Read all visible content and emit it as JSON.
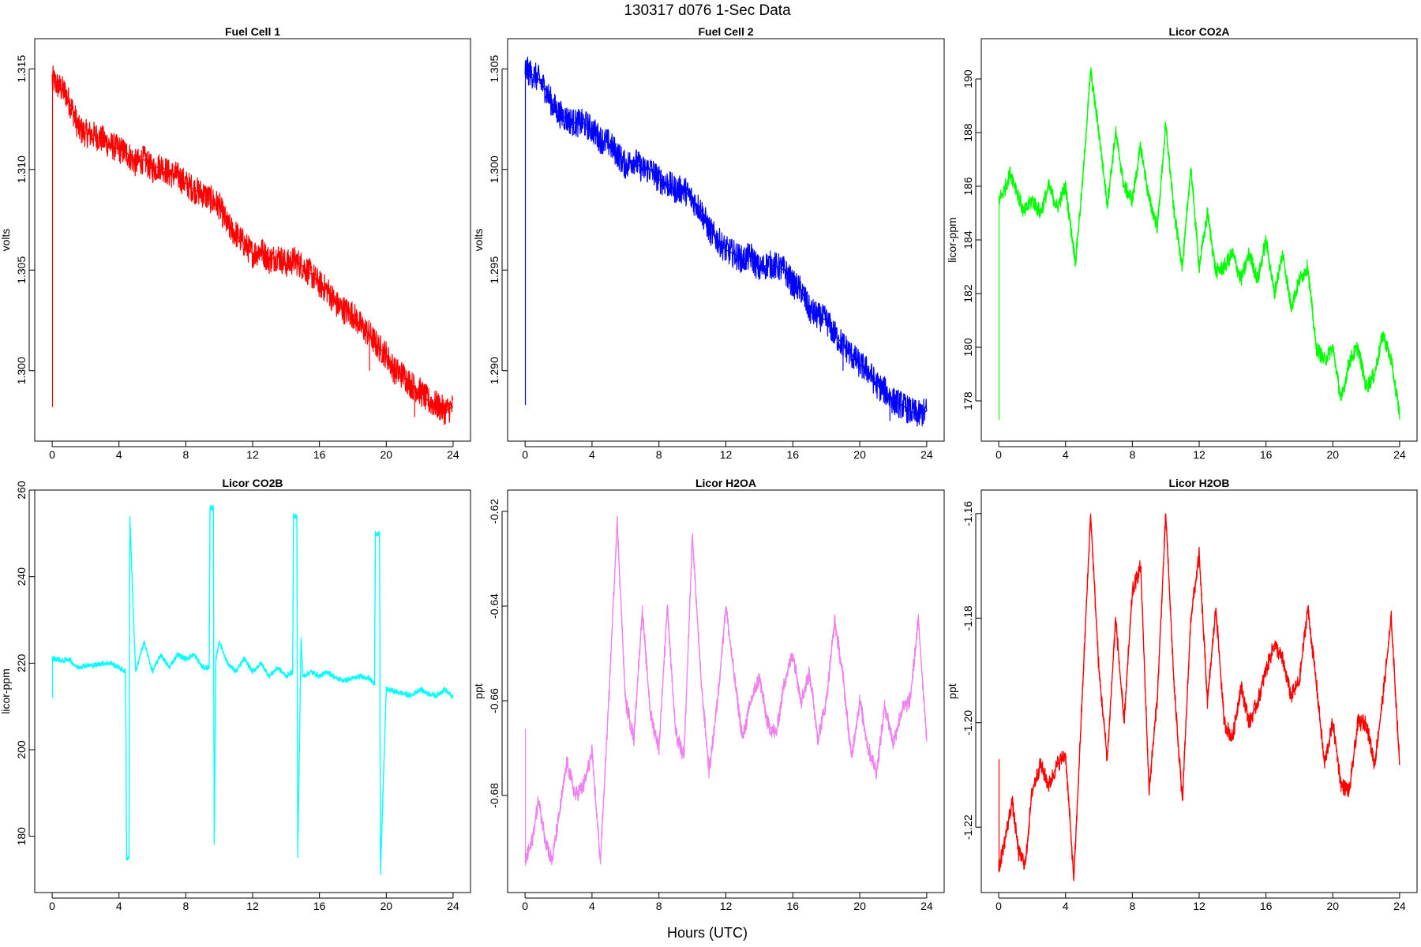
{
  "page": {
    "title": "130317   d076   1-Sec Data",
    "xlabel": "Hours (UTC)"
  },
  "chart_data": [
    {
      "type": "line",
      "title": "Fuel Cell 1",
      "xlabel": "",
      "ylabel": "volts",
      "color": "#ff0000",
      "xlim": [
        0,
        24
      ],
      "ylim": [
        1.2965,
        1.3165
      ],
      "xticks": [
        0,
        4,
        8,
        12,
        16,
        20,
        24
      ],
      "yticks": [
        1.3,
        1.305,
        1.31,
        1.315
      ],
      "ytick_labels": [
        "1.300",
        "1.305",
        "1.310",
        "1.315"
      ],
      "noise": 0.0007,
      "x": [
        0,
        0.3,
        0.8,
        1.2,
        1.6,
        2.0,
        2.5,
        3.0,
        3.5,
        4.0,
        4.5,
        5.0,
        5.5,
        6.0,
        6.5,
        7.0,
        7.5,
        8.0,
        8.5,
        9.0,
        9.5,
        10.0,
        10.5,
        11.0,
        11.5,
        12.0,
        12.5,
        13.0,
        13.5,
        14.0,
        14.5,
        15.0,
        15.5,
        16.0,
        16.5,
        17.0,
        17.5,
        18.0,
        18.5,
        19.0,
        19.5,
        20.0,
        20.5,
        21.0,
        21.5,
        22.0,
        22.5,
        23.0,
        23.5,
        24.0
      ],
      "y": [
        1.3145,
        1.3142,
        1.3138,
        1.313,
        1.312,
        1.3118,
        1.3117,
        1.3115,
        1.3112,
        1.311,
        1.3108,
        1.3103,
        1.3105,
        1.31,
        1.3102,
        1.3098,
        1.3097,
        1.3093,
        1.309,
        1.3088,
        1.3085,
        1.3082,
        1.3072,
        1.3068,
        1.3063,
        1.3058,
        1.306,
        1.3055,
        1.3057,
        1.3053,
        1.3055,
        1.3052,
        1.3048,
        1.3043,
        1.304,
        1.3033,
        1.303,
        1.3028,
        1.3022,
        1.3018,
        1.3012,
        1.3008,
        1.3,
        1.2998,
        1.2993,
        1.299,
        1.2985,
        1.2983,
        1.298,
        1.2982
      ],
      "spikes": [
        {
          "x": 0.02,
          "y": 1.2982
        },
        {
          "x": 19.0,
          "y": 1.3
        },
        {
          "x": 21.7,
          "y": 1.2977
        }
      ]
    },
    {
      "type": "line",
      "title": "Fuel Cell 2",
      "xlabel": "",
      "ylabel": "volts",
      "color": "#0000ff",
      "xlim": [
        0,
        24
      ],
      "ylim": [
        1.2865,
        1.3065
      ],
      "xticks": [
        0,
        4,
        8,
        12,
        16,
        20,
        24
      ],
      "yticks": [
        1.29,
        1.295,
        1.3,
        1.305
      ],
      "ytick_labels": [
        "1.290",
        "1.295",
        "1.300",
        "1.305"
      ],
      "noise": 0.0007,
      "x": [
        0,
        0.3,
        0.8,
        1.2,
        1.6,
        2.0,
        2.5,
        3.0,
        3.5,
        4.0,
        4.5,
        5.0,
        5.5,
        6.0,
        6.5,
        7.0,
        7.5,
        8.0,
        8.5,
        9.0,
        9.5,
        10.0,
        10.5,
        11.0,
        11.5,
        12.0,
        12.5,
        13.0,
        13.5,
        14.0,
        14.5,
        15.0,
        15.5,
        16.0,
        16.5,
        17.0,
        17.5,
        18.0,
        18.5,
        19.0,
        19.5,
        20.0,
        20.5,
        21.0,
        21.5,
        22.0,
        22.5,
        23.0,
        23.5,
        24.0
      ],
      "y": [
        1.305,
        1.3048,
        1.3045,
        1.304,
        1.3033,
        1.3028,
        1.3025,
        1.3023,
        1.3023,
        1.302,
        1.3015,
        1.3013,
        1.3008,
        1.3002,
        1.3005,
        1.3,
        1.3,
        1.2995,
        1.2993,
        1.299,
        1.299,
        1.2985,
        1.298,
        1.297,
        1.2965,
        1.296,
        1.2958,
        1.2955,
        1.2957,
        1.295,
        1.2953,
        1.2952,
        1.295,
        1.2943,
        1.294,
        1.293,
        1.2927,
        1.2925,
        1.2918,
        1.2913,
        1.2908,
        1.2903,
        1.29,
        1.2893,
        1.289,
        1.2885,
        1.2883,
        1.288,
        1.2878,
        1.288
      ],
      "spikes": [
        {
          "x": 0.02,
          "y": 1.2883
        },
        {
          "x": 19.0,
          "y": 1.29
        },
        {
          "x": 21.8,
          "y": 1.2875
        }
      ]
    },
    {
      "type": "line",
      "title": "Licor CO2A",
      "xlabel": "",
      "ylabel": "licor-ppm",
      "color": "#00ff00",
      "xlim": [
        0,
        24
      ],
      "ylim": [
        176.5,
        191.5
      ],
      "xticks": [
        0,
        4,
        8,
        12,
        16,
        20,
        24
      ],
      "yticks": [
        178,
        180,
        182,
        184,
        186,
        188,
        190
      ],
      "ytick_labels": [
        "178",
        "180",
        "182",
        "184",
        "186",
        "188",
        "190"
      ],
      "noise": 0.3,
      "x": [
        0,
        0.3,
        0.7,
        1.0,
        1.5,
        2.0,
        2.5,
        3.0,
        3.5,
        4.0,
        4.3,
        4.6,
        5.0,
        5.5,
        6.0,
        6.5,
        7.0,
        7.5,
        8.0,
        8.5,
        9.0,
        9.5,
        10.0,
        10.5,
        11.0,
        11.5,
        12.0,
        12.5,
        13.0,
        13.5,
        14.0,
        14.5,
        15.0,
        15.5,
        16.0,
        16.5,
        17.0,
        17.5,
        18.0,
        18.5,
        19.0,
        19.5,
        20.0,
        20.5,
        21.0,
        21.5,
        22.0,
        22.5,
        23.0,
        23.5,
        24.0
      ],
      "y": [
        185.5,
        185.8,
        186.5,
        186.0,
        185.0,
        185.5,
        185.0,
        186.0,
        185.2,
        186.0,
        184.5,
        183.2,
        186.0,
        190.3,
        188.0,
        185.3,
        188.0,
        186.0,
        185.5,
        187.5,
        185.5,
        184.5,
        188.3,
        185.0,
        183.0,
        186.7,
        183.0,
        185.0,
        182.8,
        183.0,
        183.5,
        182.5,
        183.5,
        182.5,
        184.0,
        182.0,
        183.5,
        181.5,
        182.5,
        183.0,
        180.0,
        179.5,
        180.0,
        178.0,
        179.5,
        180.0,
        178.5,
        179.0,
        180.5,
        179.5,
        177.5
      ],
      "spikes": [
        {
          "x": 0.02,
          "y": 177.3
        }
      ]
    },
    {
      "type": "line",
      "title": "Licor CO2B",
      "xlabel": "",
      "ylabel": "licor-ppm",
      "color": "#00ffff",
      "xlim": [
        0,
        24
      ],
      "ylim": [
        167,
        260
      ],
      "xticks": [
        0,
        4,
        8,
        12,
        16,
        20,
        24
      ],
      "yticks": [
        180,
        200,
        220,
        240,
        260
      ],
      "ytick_labels": [
        "180",
        "200",
        "220",
        "240",
        "260"
      ],
      "noise": 0.6,
      "x": [
        0,
        0.3,
        0.6,
        1.0,
        1.5,
        2.0,
        2.5,
        3.0,
        3.5,
        4.0,
        4.4,
        4.45,
        4.6,
        4.65,
        4.9,
        5.0,
        5.5,
        6.0,
        6.5,
        7.0,
        7.5,
        8.0,
        8.5,
        9.0,
        9.4,
        9.45,
        9.65,
        9.7,
        9.8,
        10.0,
        10.5,
        11.0,
        11.5,
        12.0,
        12.5,
        13.0,
        13.5,
        14.0,
        14.4,
        14.45,
        14.65,
        14.7,
        14.9,
        15.0,
        15.5,
        16.0,
        16.5,
        17.0,
        17.5,
        18.0,
        18.5,
        19.0,
        19.3,
        19.35,
        19.6,
        19.65,
        20.0,
        20.5,
        21.0,
        21.5,
        22.0,
        22.5,
        23.0,
        23.5,
        24.0
      ],
      "y": [
        221,
        221,
        220.5,
        221,
        219,
        219.5,
        219.5,
        220,
        220,
        219,
        218,
        175,
        175,
        254,
        227,
        218,
        225,
        218,
        222,
        219,
        222,
        221,
        222,
        219,
        219,
        256,
        256,
        178,
        221,
        225,
        220,
        218,
        221,
        218,
        220,
        217,
        219,
        217,
        218,
        254,
        254,
        175,
        226,
        217,
        218,
        217,
        218,
        216.5,
        216,
        216.5,
        217,
        216.5,
        215,
        250,
        250,
        171,
        214,
        213.5,
        213,
        212.5,
        214,
        213,
        212.5,
        214,
        212
      ],
      "spikes": [
        {
          "x": 0.02,
          "y": 212
        }
      ]
    },
    {
      "type": "line",
      "title": "Licor H2OA",
      "xlabel": "",
      "ylabel": "ppt",
      "color": "#ee82ee",
      "xlim": [
        0,
        24
      ],
      "ylim": [
        -0.7005,
        -0.6155
      ],
      "xticks": [
        0,
        4,
        8,
        12,
        16,
        20,
        24
      ],
      "yticks": [
        -0.68,
        -0.66,
        -0.64,
        -0.62
      ],
      "ytick_labels": [
        "-0.68",
        "-0.66",
        "-0.64",
        "-0.62"
      ],
      "noise": 0.0018,
      "x": [
        0,
        0.4,
        0.8,
        1.2,
        1.6,
        2.0,
        2.5,
        3.0,
        3.5,
        4.0,
        4.5,
        5.0,
        5.5,
        6.0,
        6.5,
        7.0,
        7.5,
        8.0,
        8.5,
        9.0,
        9.5,
        10.0,
        10.5,
        11.0,
        11.5,
        12.0,
        12.5,
        13.0,
        13.5,
        14.0,
        14.5,
        15.0,
        15.5,
        16.0,
        16.5,
        17.0,
        17.5,
        18.0,
        18.5,
        19.0,
        19.5,
        20.0,
        20.5,
        21.0,
        21.5,
        22.0,
        22.5,
        23.0,
        23.5,
        24.0
      ],
      "y": [
        -0.694,
        -0.69,
        -0.681,
        -0.689,
        -0.694,
        -0.685,
        -0.673,
        -0.68,
        -0.678,
        -0.671,
        -0.694,
        -0.66,
        -0.622,
        -0.66,
        -0.668,
        -0.641,
        -0.663,
        -0.67,
        -0.64,
        -0.667,
        -0.672,
        -0.625,
        -0.655,
        -0.675,
        -0.66,
        -0.64,
        -0.655,
        -0.668,
        -0.66,
        -0.655,
        -0.665,
        -0.667,
        -0.656,
        -0.65,
        -0.66,
        -0.654,
        -0.668,
        -0.66,
        -0.643,
        -0.655,
        -0.672,
        -0.66,
        -0.67,
        -0.675,
        -0.661,
        -0.669,
        -0.662,
        -0.66,
        -0.643,
        -0.668
      ],
      "spikes": [
        {
          "x": 0.02,
          "y": -0.666
        }
      ]
    },
    {
      "type": "line",
      "title": "Licor H2OB",
      "xlabel": "",
      "ylabel": "ppt",
      "color": "#ff0000",
      "xlim": [
        0,
        24
      ],
      "ylim": [
        -1.2325,
        -1.1555
      ],
      "xticks": [
        0,
        4,
        8,
        12,
        16,
        20,
        24
      ],
      "yticks": [
        -1.22,
        -1.2,
        -1.18,
        -1.16
      ],
      "ytick_labels": [
        "-1.22",
        "-1.20",
        "-1.18",
        "-1.16"
      ],
      "noise": 0.0016,
      "x": [
        0,
        0.4,
        0.8,
        1.2,
        1.6,
        2.0,
        2.5,
        3.0,
        3.5,
        4.0,
        4.5,
        5.0,
        5.5,
        6.0,
        6.5,
        7.0,
        7.5,
        8.0,
        8.5,
        9.0,
        9.5,
        10.0,
        10.5,
        11.0,
        11.5,
        12.0,
        12.5,
        13.0,
        13.5,
        14.0,
        14.5,
        15.0,
        15.5,
        16.0,
        16.5,
        17.0,
        17.5,
        18.0,
        18.5,
        19.0,
        19.5,
        20.0,
        20.5,
        21.0,
        21.5,
        22.0,
        22.5,
        23.0,
        23.5,
        24.0
      ],
      "y": [
        -1.228,
        -1.222,
        -1.215,
        -1.225,
        -1.227,
        -1.213,
        -1.208,
        -1.212,
        -1.208,
        -1.206,
        -1.23,
        -1.195,
        -1.16,
        -1.19,
        -1.207,
        -1.18,
        -1.2,
        -1.175,
        -1.17,
        -1.213,
        -1.195,
        -1.16,
        -1.193,
        -1.215,
        -1.18,
        -1.168,
        -1.196,
        -1.178,
        -1.2,
        -1.203,
        -1.193,
        -1.2,
        -1.196,
        -1.19,
        -1.185,
        -1.188,
        -1.195,
        -1.192,
        -1.178,
        -1.192,
        -1.208,
        -1.2,
        -1.212,
        -1.213,
        -1.2,
        -1.2,
        -1.208,
        -1.195,
        -1.18,
        -1.208
      ],
      "spikes": [
        {
          "x": 0.02,
          "y": -1.207
        }
      ]
    }
  ]
}
